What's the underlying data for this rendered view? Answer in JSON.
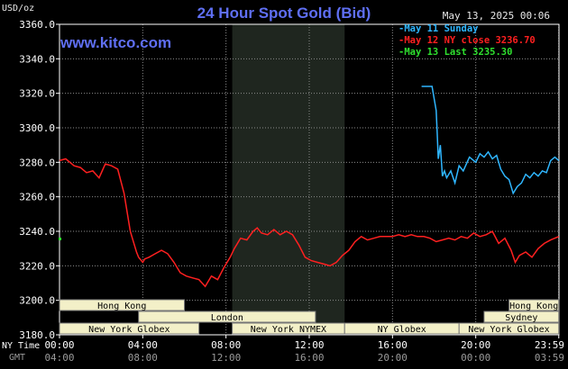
{
  "page": {
    "unit_label": "USD/oz",
    "title": "24 Hour Spot Gold (Bid)",
    "timestamp": "May 13, 2025 00:06",
    "watermark": "www.kitco.com",
    "legend": [
      {
        "text": "May 11 Sunday",
        "color": "#2fb6ff"
      },
      {
        "text": "May 12 NY close 3236.70",
        "color": "#ff2020"
      },
      {
        "text": "May 13 Last 3235.30",
        "color": "#2fe02f"
      }
    ],
    "ny_time_label": "NY Time",
    "gmt_label": "GMT",
    "ny_time_ticks": [
      "00:00",
      "04:00",
      "08:00",
      "12:00",
      "16:00",
      "20:00",
      "23:59"
    ],
    "gmt_ticks": [
      "04:00",
      "08:00",
      "12:00",
      "16:00",
      "20:00",
      "00:00",
      "03:59"
    ],
    "sessions": [
      {
        "label": "Hong Kong",
        "start": 0,
        "end": 6,
        "row": 0
      },
      {
        "label": "London",
        "start": 3.8,
        "end": 12.3,
        "row": 1
      },
      {
        "label": "New York Globex",
        "start": 0,
        "end": 6.7,
        "row": 2
      },
      {
        "label": "New York NYMEX",
        "start": 8.3,
        "end": 13.7,
        "row": 2
      },
      {
        "label": "NY Globex",
        "start": 13.7,
        "end": 19.2,
        "row": 2
      },
      {
        "label": "Hong Kong",
        "start": 21.6,
        "end": 23.99,
        "row": 0
      },
      {
        "label": "Sydney",
        "start": 20.4,
        "end": 23.99,
        "row": 1
      },
      {
        "label": "New York Globex",
        "start": 19.2,
        "end": 23.99,
        "row": 2
      }
    ],
    "colors": {
      "grid": "#8a8a8a",
      "shade": "#1f261f",
      "session_fill": "#f3f0c8",
      "session_text": "#000000",
      "axis_text": "#ffffff"
    }
  },
  "chart_data": {
    "type": "line",
    "xlabel": "NY Time",
    "ylabel": "USD/oz",
    "xlim": [
      0,
      24
    ],
    "ylim": [
      3180,
      3360
    ],
    "yticks": [
      3180,
      3200,
      3220,
      3240,
      3260,
      3280,
      3300,
      3320,
      3340,
      3360
    ],
    "ytick_labels": [
      "3180.0",
      "3200.0",
      "3220.0",
      "3240.0",
      "3260.0",
      "3280.0",
      "3300.0",
      "3320.0",
      "3340.0",
      "3360.0"
    ],
    "shaded_x_range": [
      8.3,
      13.7
    ],
    "grid": true,
    "series": [
      {
        "name": "May 12",
        "color": "#ff2020",
        "x": [
          0,
          0.3,
          0.7,
          1.0,
          1.3,
          1.6,
          1.9,
          2.2,
          2.5,
          2.8,
          3.1,
          3.4,
          3.5,
          3.7,
          3.8,
          4.0,
          4.1,
          4.3,
          4.6,
          4.9,
          5.2,
          5.5,
          5.8,
          6.1,
          6.4,
          6.7,
          7.0,
          7.3,
          7.6,
          7.9,
          8.2,
          8.4,
          8.7,
          9.0,
          9.3,
          9.5,
          9.7,
          10.0,
          10.3,
          10.6,
          10.9,
          11.2,
          11.5,
          11.8,
          12.1,
          12.4,
          12.7,
          13.0,
          13.3,
          13.6,
          13.9,
          14.2,
          14.5,
          14.8,
          15.1,
          15.4,
          15.7,
          16.0,
          16.3,
          16.6,
          16.9,
          17.2,
          17.5,
          17.8,
          18.1,
          18.4,
          18.7,
          19.0,
          19.3,
          19.6,
          19.9,
          20.2,
          20.5,
          20.8,
          21.1,
          21.4,
          21.7,
          21.9,
          22.1,
          22.4,
          22.7,
          23.0,
          23.3,
          23.6,
          23.99
        ],
        "y": [
          3281,
          3282,
          3278,
          3277,
          3274,
          3275,
          3271,
          3279,
          3278,
          3276,
          3262,
          3240,
          3236,
          3228,
          3225,
          3222,
          3224,
          3225,
          3227,
          3229,
          3227,
          3222,
          3216,
          3214,
          3213,
          3212,
          3208,
          3214,
          3212,
          3219,
          3225,
          3230,
          3236,
          3235,
          3240,
          3242,
          3239,
          3238,
          3241,
          3238,
          3240,
          3238,
          3232,
          3225,
          3223,
          3222,
          3221,
          3220,
          3222,
          3226,
          3229,
          3234,
          3237,
          3235,
          3236,
          3237,
          3237,
          3237,
          3238,
          3237,
          3238,
          3237,
          3237,
          3236,
          3234,
          3235,
          3236,
          3235,
          3237,
          3236,
          3239,
          3237,
          3238,
          3240,
          3233,
          3236,
          3229,
          3222,
          3226,
          3228,
          3225,
          3230,
          3233,
          3235,
          3237
        ]
      },
      {
        "name": "May 11",
        "color": "#2fb6ff",
        "x": [
          17.4,
          17.9,
          18.1,
          18.15,
          18.2,
          18.3,
          18.4,
          18.5,
          18.6,
          18.8,
          19.0,
          19.2,
          19.4,
          19.7,
          20.0,
          20.2,
          20.4,
          20.6,
          20.8,
          21.0,
          21.2,
          21.4,
          21.6,
          21.8,
          22.0,
          22.2,
          22.4,
          22.6,
          22.8,
          23.0,
          23.2,
          23.4,
          23.6,
          23.8,
          23.99
        ],
        "y": [
          3324,
          3324,
          3310,
          3296,
          3282,
          3290,
          3272,
          3275,
          3271,
          3275,
          3268,
          3278,
          3275,
          3283,
          3280,
          3285,
          3283,
          3286,
          3282,
          3284,
          3276,
          3272,
          3270,
          3262,
          3266,
          3268,
          3273,
          3271,
          3274,
          3272,
          3275,
          3274,
          3281,
          3283,
          3281
        ]
      },
      {
        "name": "May 13",
        "color": "#2fe02f",
        "x": [
          0
        ],
        "y": [
          3235.3
        ]
      }
    ]
  }
}
